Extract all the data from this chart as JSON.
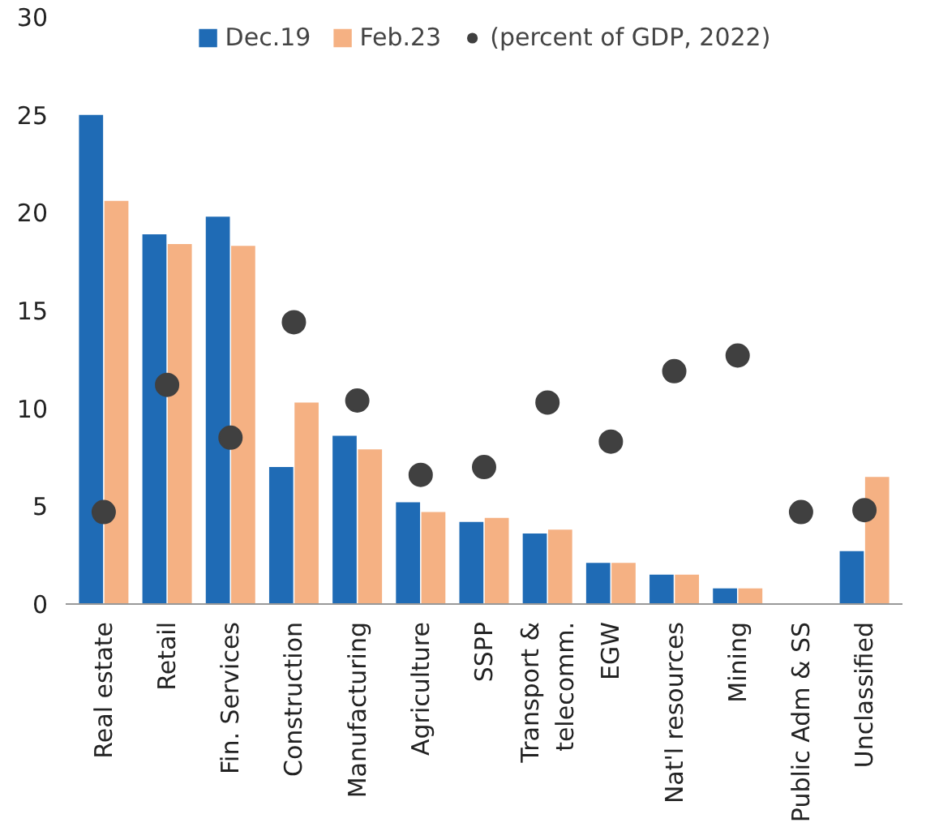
{
  "chart_data": {
    "type": "bar",
    "categories": [
      "Real estate",
      "Retail",
      "Fin. Services",
      "Construction",
      "Manufacturing",
      "Agriculture",
      "SSPP",
      "Transport &\ntelecomm.",
      "EGW",
      "Nat'l resources",
      "Mining",
      "Public Adm & SS",
      "Unclassified"
    ],
    "series": [
      {
        "name": "Dec.19",
        "color": "#1f6bb5",
        "values": [
          25.0,
          18.9,
          19.8,
          7.0,
          8.6,
          5.2,
          4.2,
          3.6,
          2.1,
          1.5,
          0.8,
          0,
          2.7
        ]
      },
      {
        "name": "Feb.23",
        "color": "#f5b183",
        "values": [
          20.6,
          18.4,
          18.3,
          10.3,
          7.9,
          4.7,
          4.4,
          3.8,
          2.1,
          1.5,
          0.8,
          0,
          6.5
        ]
      },
      {
        "name": "(percent of GDP, 2022)",
        "type": "scatter",
        "color": "#404040",
        "marker": "circle",
        "values": [
          4.7,
          11.2,
          8.5,
          14.4,
          10.4,
          6.6,
          7.0,
          10.3,
          8.3,
          11.9,
          12.7,
          4.7,
          4.8
        ]
      }
    ],
    "ylim": [
      0,
      30
    ],
    "yticks": [
      0,
      5,
      10,
      15,
      20,
      25,
      30
    ],
    "grid": false,
    "legend": "top"
  }
}
